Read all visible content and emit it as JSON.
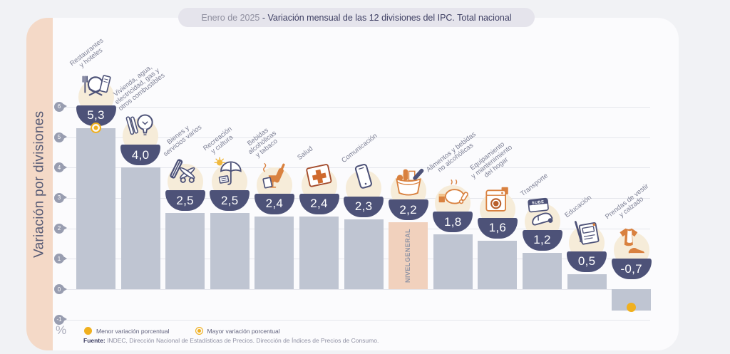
{
  "header": {
    "period": "Enero de 2025",
    "title_rest": " - Variación mensual de las 12 divisiones del IPC. Total nacional"
  },
  "axis": {
    "unit_symbol": "%",
    "yticks": [
      6,
      5,
      4,
      3,
      2,
      1,
      0,
      -1
    ]
  },
  "legend": {
    "minor": "Menor variación porcentual",
    "mayor": "Mayor variación porcentual"
  },
  "source": {
    "label": "Fuente:",
    "text": " INDEC, Dirección Nacional de Estadísticas de Precios. Dirección de Índices de Precios de Consumo."
  },
  "chart_data": {
    "type": "bar",
    "title": "Enero de 2025 - Variación mensual de las 12 divisiones del IPC. Total nacional",
    "ylabel": "Variación por divisiones",
    "unit": "%",
    "ylim": [
      -1,
      6
    ],
    "grid": true,
    "categories": [
      "Restaurantes\ny hoteles",
      "Vivienda, agua,\nelectricidad, gas y\notros combustibles",
      "Bienes y\nservicios varios",
      "Recreación\ny cultura",
      "Bebidas\nalcohólicas\ny tabaco",
      "Salud",
      "Comunicación",
      "NIVEL GENERAL",
      "Alimentos y bebidas\nno alcohólicas",
      "Equipamiento\ny mantenimiento\ndel hogar",
      "Transporte",
      "Educación",
      "Prendas de vestir\ny calzado"
    ],
    "values": [
      5.3,
      4.0,
      2.5,
      2.5,
      2.4,
      2.4,
      2.3,
      2.2,
      1.8,
      1.6,
      1.2,
      0.5,
      -0.7
    ],
    "display_values": [
      "5,3",
      "4,0",
      "2,5",
      "2,5",
      "2,4",
      "2,4",
      "2,3",
      "2,2",
      "1,8",
      "1,6",
      "1,2",
      "0,5",
      "-0,7"
    ],
    "icons": [
      "restaurant-icon",
      "housing-utilities-icon",
      "goods-services-icon",
      "recreation-culture-icon",
      "alcohol-tobacco-icon",
      "health-icon",
      "communication-icon",
      "shopping-basket-icon",
      "food-beverages-icon",
      "home-equipment-icon",
      "transport-icon",
      "education-icon",
      "clothing-footwear-icon"
    ],
    "general_level_index": 7,
    "general_level_label": "NIVEL GENERAL",
    "max_marker": {
      "index": 0,
      "meaning": "Mayor variación porcentual"
    },
    "min_marker": {
      "index": 12,
      "meaning": "Menor variación porcentual"
    },
    "transport_card_label": "SUBE"
  },
  "colors": {
    "bar_grey": "#bfc5d2",
    "highlight_peach": "#f1d1bd",
    "sidebar_peach": "#f4d9c7",
    "bowl_navy": "#4d5278",
    "marker_yellow": "#f0b01f",
    "icon_orange": "#d9813f",
    "title_pill_bg": "#e5e4ec"
  }
}
